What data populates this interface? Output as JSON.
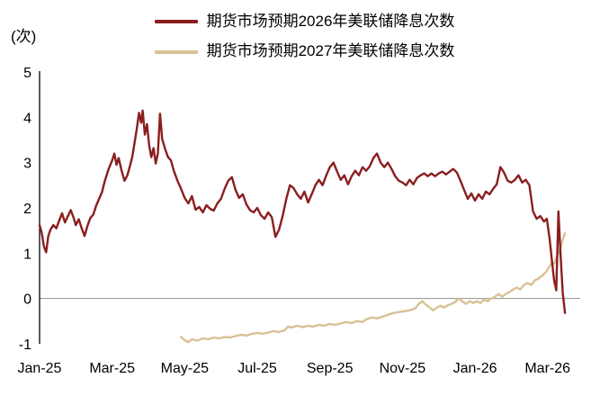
{
  "chart_data": {
    "type": "line",
    "title": "",
    "xlabel": "",
    "ylabel": "(次)",
    "xlim": [
      0,
      14.9
    ],
    "ylim": [
      -1,
      5
    ],
    "y_ticks": [
      5,
      4,
      3,
      2,
      1,
      0,
      -1
    ],
    "x_ticks": [
      {
        "x": 0,
        "label": "Jan-25"
      },
      {
        "x": 2,
        "label": "Mar-25"
      },
      {
        "x": 4,
        "label": "May-25"
      },
      {
        "x": 6,
        "label": "Jul-25"
      },
      {
        "x": 8,
        "label": "Sep-25"
      },
      {
        "x": 10,
        "label": "Nov-25"
      },
      {
        "x": 12,
        "label": "Jan-26"
      },
      {
        "x": 14,
        "label": "Mar-26"
      }
    ],
    "grid": false,
    "legend_position": "top-center",
    "axis_color": "#000000",
    "zero_line_color": "#8f8f8f",
    "series": [
      {
        "name": "期货市场预期2026年美联储降息次数",
        "color": "#8A1E1E",
        "points": [
          [
            0,
            1.62
          ],
          [
            0.06,
            1.45
          ],
          [
            0.12,
            1.15
          ],
          [
            0.18,
            1.02
          ],
          [
            0.24,
            1.38
          ],
          [
            0.3,
            1.52
          ],
          [
            0.38,
            1.62
          ],
          [
            0.46,
            1.55
          ],
          [
            0.54,
            1.72
          ],
          [
            0.62,
            1.88
          ],
          [
            0.7,
            1.68
          ],
          [
            0.78,
            1.82
          ],
          [
            0.86,
            1.95
          ],
          [
            0.94,
            1.78
          ],
          [
            1.0,
            1.62
          ],
          [
            1.08,
            1.75
          ],
          [
            1.16,
            1.55
          ],
          [
            1.24,
            1.38
          ],
          [
            1.32,
            1.6
          ],
          [
            1.4,
            1.78
          ],
          [
            1.48,
            1.85
          ],
          [
            1.56,
            2.05
          ],
          [
            1.64,
            2.2
          ],
          [
            1.72,
            2.35
          ],
          [
            1.8,
            2.6
          ],
          [
            1.9,
            2.85
          ],
          [
            2.0,
            3.05
          ],
          [
            2.06,
            3.2
          ],
          [
            2.12,
            2.95
          ],
          [
            2.18,
            3.1
          ],
          [
            2.26,
            2.82
          ],
          [
            2.34,
            2.6
          ],
          [
            2.42,
            2.72
          ],
          [
            2.5,
            2.95
          ],
          [
            2.56,
            3.15
          ],
          [
            2.62,
            3.45
          ],
          [
            2.68,
            3.75
          ],
          [
            2.74,
            4.1
          ],
          [
            2.8,
            3.88
          ],
          [
            2.84,
            4.15
          ],
          [
            2.9,
            3.62
          ],
          [
            2.96,
            3.85
          ],
          [
            3.02,
            3.38
          ],
          [
            3.08,
            3.12
          ],
          [
            3.14,
            3.32
          ],
          [
            3.2,
            2.98
          ],
          [
            3.26,
            3.2
          ],
          [
            3.32,
            4.08
          ],
          [
            3.38,
            3.52
          ],
          [
            3.46,
            3.3
          ],
          [
            3.54,
            3.12
          ],
          [
            3.62,
            3.05
          ],
          [
            3.7,
            2.82
          ],
          [
            3.8,
            2.6
          ],
          [
            3.9,
            2.42
          ],
          [
            4.0,
            2.22
          ],
          [
            4.1,
            2.1
          ],
          [
            4.2,
            2.26
          ],
          [
            4.3,
            1.96
          ],
          [
            4.4,
            2.02
          ],
          [
            4.5,
            1.9
          ],
          [
            4.6,
            2.06
          ],
          [
            4.7,
            1.98
          ],
          [
            4.8,
            1.94
          ],
          [
            4.9,
            2.1
          ],
          [
            5.0,
            2.2
          ],
          [
            5.1,
            2.42
          ],
          [
            5.2,
            2.6
          ],
          [
            5.3,
            2.68
          ],
          [
            5.4,
            2.4
          ],
          [
            5.5,
            2.22
          ],
          [
            5.6,
            2.3
          ],
          [
            5.7,
            2.08
          ],
          [
            5.8,
            1.95
          ],
          [
            5.9,
            1.9
          ],
          [
            6.0,
            2.0
          ],
          [
            6.1,
            1.84
          ],
          [
            6.2,
            1.76
          ],
          [
            6.3,
            1.9
          ],
          [
            6.4,
            1.8
          ],
          [
            6.5,
            1.36
          ],
          [
            6.6,
            1.52
          ],
          [
            6.7,
            1.82
          ],
          [
            6.8,
            2.2
          ],
          [
            6.9,
            2.5
          ],
          [
            7.0,
            2.44
          ],
          [
            7.1,
            2.3
          ],
          [
            7.2,
            2.2
          ],
          [
            7.3,
            2.36
          ],
          [
            7.4,
            2.12
          ],
          [
            7.5,
            2.3
          ],
          [
            7.6,
            2.5
          ],
          [
            7.7,
            2.62
          ],
          [
            7.8,
            2.5
          ],
          [
            7.9,
            2.72
          ],
          [
            8.0,
            2.9
          ],
          [
            8.1,
            3.0
          ],
          [
            8.2,
            2.8
          ],
          [
            8.3,
            2.62
          ],
          [
            8.4,
            2.72
          ],
          [
            8.5,
            2.52
          ],
          [
            8.6,
            2.7
          ],
          [
            8.7,
            2.82
          ],
          [
            8.8,
            2.72
          ],
          [
            8.9,
            2.9
          ],
          [
            9.0,
            2.82
          ],
          [
            9.1,
            2.92
          ],
          [
            9.2,
            3.1
          ],
          [
            9.3,
            3.2
          ],
          [
            9.4,
            3.0
          ],
          [
            9.5,
            2.9
          ],
          [
            9.6,
            3.0
          ],
          [
            9.7,
            2.86
          ],
          [
            9.8,
            2.7
          ],
          [
            9.9,
            2.6
          ],
          [
            10.0,
            2.56
          ],
          [
            10.1,
            2.5
          ],
          [
            10.2,
            2.62
          ],
          [
            10.3,
            2.52
          ],
          [
            10.4,
            2.66
          ],
          [
            10.5,
            2.72
          ],
          [
            10.6,
            2.76
          ],
          [
            10.7,
            2.7
          ],
          [
            10.8,
            2.76
          ],
          [
            10.9,
            2.7
          ],
          [
            11.0,
            2.76
          ],
          [
            11.1,
            2.8
          ],
          [
            11.2,
            2.74
          ],
          [
            11.3,
            2.8
          ],
          [
            11.4,
            2.86
          ],
          [
            11.5,
            2.78
          ],
          [
            11.6,
            2.6
          ],
          [
            11.7,
            2.4
          ],
          [
            11.8,
            2.2
          ],
          [
            11.9,
            2.32
          ],
          [
            12.0,
            2.16
          ],
          [
            12.1,
            2.3
          ],
          [
            12.2,
            2.2
          ],
          [
            12.3,
            2.36
          ],
          [
            12.4,
            2.3
          ],
          [
            12.5,
            2.42
          ],
          [
            12.6,
            2.52
          ],
          [
            12.7,
            2.9
          ],
          [
            12.8,
            2.78
          ],
          [
            12.9,
            2.6
          ],
          [
            13.0,
            2.56
          ],
          [
            13.1,
            2.62
          ],
          [
            13.2,
            2.72
          ],
          [
            13.3,
            2.56
          ],
          [
            13.4,
            2.62
          ],
          [
            13.5,
            2.5
          ],
          [
            13.6,
            1.92
          ],
          [
            13.7,
            1.76
          ],
          [
            13.8,
            1.82
          ],
          [
            13.9,
            1.7
          ],
          [
            13.98,
            1.76
          ],
          [
            14.06,
            1.3
          ],
          [
            14.12,
            0.85
          ],
          [
            14.18,
            0.4
          ],
          [
            14.24,
            0.18
          ],
          [
            14.3,
            1.92
          ],
          [
            14.36,
            0.95
          ],
          [
            14.42,
            0.12
          ],
          [
            14.48,
            -0.32
          ]
        ]
      },
      {
        "name": "期货市场预期2027年美联储降息次数",
        "color": "#D8C194",
        "points": [
          [
            3.9,
            -0.85
          ],
          [
            4.0,
            -0.92
          ],
          [
            4.1,
            -0.96
          ],
          [
            4.2,
            -0.9
          ],
          [
            4.35,
            -0.93
          ],
          [
            4.5,
            -0.88
          ],
          [
            4.65,
            -0.9
          ],
          [
            4.8,
            -0.86
          ],
          [
            4.95,
            -0.88
          ],
          [
            5.1,
            -0.85
          ],
          [
            5.25,
            -0.86
          ],
          [
            5.4,
            -0.83
          ],
          [
            5.55,
            -0.8
          ],
          [
            5.7,
            -0.82
          ],
          [
            5.85,
            -0.78
          ],
          [
            6.0,
            -0.76
          ],
          [
            6.15,
            -0.78
          ],
          [
            6.3,
            -0.75
          ],
          [
            6.45,
            -0.72
          ],
          [
            6.6,
            -0.74
          ],
          [
            6.75,
            -0.7
          ],
          [
            6.85,
            -0.62
          ],
          [
            6.95,
            -0.64
          ],
          [
            7.1,
            -0.6
          ],
          [
            7.25,
            -0.63
          ],
          [
            7.4,
            -0.6
          ],
          [
            7.55,
            -0.62
          ],
          [
            7.7,
            -0.58
          ],
          [
            7.85,
            -0.6
          ],
          [
            8.0,
            -0.56
          ],
          [
            8.15,
            -0.58
          ],
          [
            8.3,
            -0.55
          ],
          [
            8.45,
            -0.52
          ],
          [
            8.6,
            -0.54
          ],
          [
            8.75,
            -0.5
          ],
          [
            8.9,
            -0.52
          ],
          [
            9.0,
            -0.46
          ],
          [
            9.15,
            -0.42
          ],
          [
            9.3,
            -0.44
          ],
          [
            9.45,
            -0.4
          ],
          [
            9.6,
            -0.36
          ],
          [
            9.75,
            -0.32
          ],
          [
            9.9,
            -0.3
          ],
          [
            10.05,
            -0.28
          ],
          [
            10.2,
            -0.26
          ],
          [
            10.35,
            -0.22
          ],
          [
            10.45,
            -0.12
          ],
          [
            10.55,
            -0.06
          ],
          [
            10.65,
            -0.14
          ],
          [
            10.75,
            -0.2
          ],
          [
            10.85,
            -0.26
          ],
          [
            10.95,
            -0.2
          ],
          [
            11.05,
            -0.16
          ],
          [
            11.15,
            -0.2
          ],
          [
            11.25,
            -0.15
          ],
          [
            11.35,
            -0.12
          ],
          [
            11.45,
            -0.08
          ],
          [
            11.55,
            0.0
          ],
          [
            11.65,
            -0.06
          ],
          [
            11.75,
            -0.12
          ],
          [
            11.85,
            -0.06
          ],
          [
            11.95,
            -0.1
          ],
          [
            12.05,
            -0.06
          ],
          [
            12.15,
            -0.1
          ],
          [
            12.25,
            -0.02
          ],
          [
            12.35,
            -0.06
          ],
          [
            12.45,
            0.0
          ],
          [
            12.55,
            0.04
          ],
          [
            12.65,
            0.1
          ],
          [
            12.75,
            0.04
          ],
          [
            12.85,
            0.1
          ],
          [
            12.95,
            0.14
          ],
          [
            13.05,
            0.2
          ],
          [
            13.15,
            0.24
          ],
          [
            13.25,
            0.2
          ],
          [
            13.35,
            0.3
          ],
          [
            13.45,
            0.34
          ],
          [
            13.55,
            0.3
          ],
          [
            13.65,
            0.4
          ],
          [
            13.75,
            0.44
          ],
          [
            13.85,
            0.5
          ],
          [
            13.95,
            0.58
          ],
          [
            14.05,
            0.7
          ],
          [
            14.12,
            0.8
          ],
          [
            14.18,
            0.76
          ],
          [
            14.24,
            0.9
          ],
          [
            14.3,
            1.0
          ],
          [
            14.36,
            1.12
          ],
          [
            14.42,
            1.3
          ],
          [
            14.48,
            1.44
          ]
        ]
      }
    ]
  }
}
